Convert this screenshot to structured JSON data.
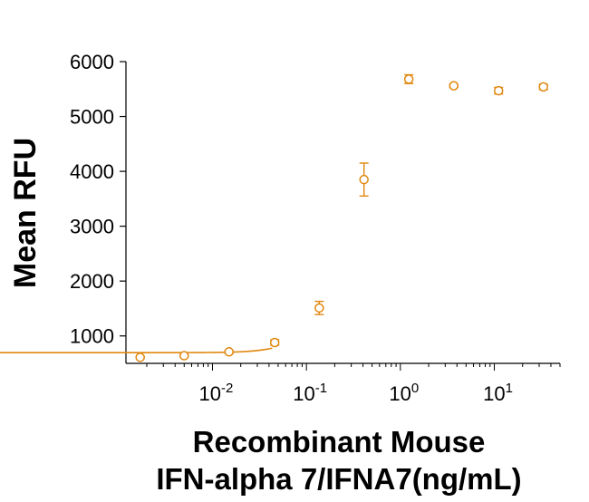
{
  "chart_data": {
    "type": "scatter",
    "ylabel": "Mean RFU",
    "xlabel_lines": [
      "Recombinant Mouse",
      "IFN-alpha 7/IFNA7(ng/mL)"
    ],
    "x_scale": "log",
    "xlim": [
      0.0012,
      50
    ],
    "ylim": [
      500,
      6000
    ],
    "y_ticks": [
      1000,
      2000,
      3000,
      4000,
      5000,
      6000
    ],
    "x_ticks": [
      {
        "value": 0.01,
        "base": "10",
        "exp": "-2"
      },
      {
        "value": 0.1,
        "base": "10",
        "exp": "-1"
      },
      {
        "value": 1,
        "base": "10",
        "exp": "0"
      },
      {
        "value": 10,
        "base": "10",
        "exp": "1"
      }
    ],
    "color": "#E0870E",
    "series": [
      {
        "points": [
          {
            "x": 0.0017,
            "y": 610,
            "err": 15
          },
          {
            "x": 0.005,
            "y": 640,
            "err": 15
          },
          {
            "x": 0.015,
            "y": 710,
            "err": 20
          },
          {
            "x": 0.046,
            "y": 880,
            "err": 50
          },
          {
            "x": 0.137,
            "y": 1510,
            "err": 120
          },
          {
            "x": 0.41,
            "y": 3850,
            "err": 300
          },
          {
            "x": 1.23,
            "y": 5680,
            "err": 80
          },
          {
            "x": 3.7,
            "y": 5560,
            "err": 30
          },
          {
            "x": 11.1,
            "y": 5470,
            "err": 60
          },
          {
            "x": 33.3,
            "y": 5540,
            "err": 50
          }
        ]
      }
    ],
    "fit": {
      "model": "4PL",
      "bottom": 695,
      "top": 5595,
      "ec50": 0.3,
      "hill": 2.1
    }
  }
}
